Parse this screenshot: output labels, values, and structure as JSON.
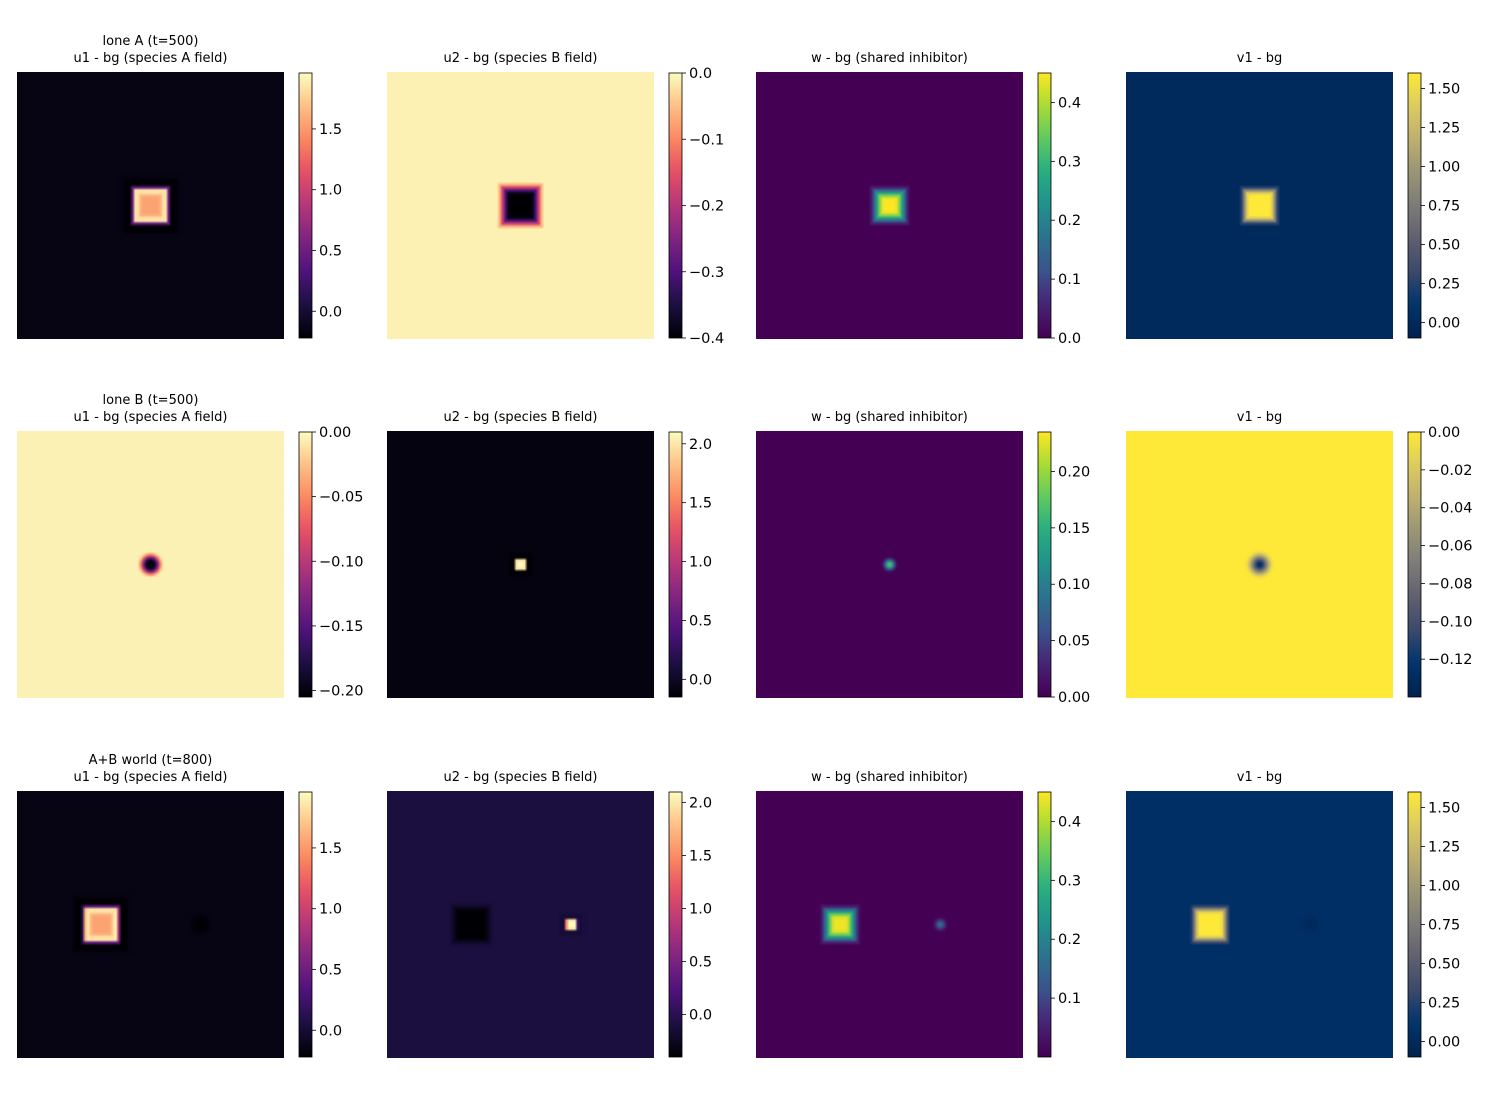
{
  "chart_data": [
    {
      "type": "heatmap",
      "row": 0,
      "col": 0,
      "row_label": "lone A (t=500)",
      "title": "u1 - bg (species A field)",
      "colormap": "magma",
      "vmin": -0.22,
      "vmax": 1.96,
      "colorbar_ticks": [
        "0.0",
        "0.5",
        "1.0",
        "1.5"
      ],
      "colorbar_tick_values": [
        0.0,
        0.5,
        1.0,
        1.5
      ],
      "background_value": -0.15,
      "blobs": [
        {
          "shape": "square",
          "cx": 0.5,
          "cy": 0.5,
          "half_size": 0.065,
          "soft": 0.01,
          "value": 1.55,
          "edge_value": 1.92,
          "halo_value": -0.22,
          "halo_width": 0.05
        }
      ]
    },
    {
      "type": "heatmap",
      "row": 0,
      "col": 1,
      "title": "u2 - bg (species B field)",
      "colormap": "magma",
      "vmin": -0.4,
      "vmax": 0.0,
      "colorbar_ticks": [
        "0.0",
        "−0.1",
        "−0.2",
        "−0.3",
        "−0.4"
      ],
      "colorbar_tick_values": [
        0.0,
        -0.1,
        -0.2,
        -0.3,
        -0.4
      ],
      "background_value": -0.01,
      "blobs": [
        {
          "shape": "square",
          "cx": 0.5,
          "cy": 0.5,
          "half_size": 0.065,
          "soft": 0.025,
          "value": -0.4
        }
      ]
    },
    {
      "type": "heatmap",
      "row": 0,
      "col": 2,
      "title": "w - bg (shared inhibitor)",
      "colormap": "viridis",
      "vmin": 0.0,
      "vmax": 0.45,
      "colorbar_ticks": [
        "0.0",
        "0.1",
        "0.2",
        "0.3",
        "0.4"
      ],
      "colorbar_tick_values": [
        0.0,
        0.1,
        0.2,
        0.3,
        0.4
      ],
      "background_value": 0.0,
      "blobs": [
        {
          "shape": "square",
          "cx": 0.5,
          "cy": 0.5,
          "half_size": 0.05,
          "soft": 0.03,
          "value": 0.45
        }
      ]
    },
    {
      "type": "heatmap",
      "row": 0,
      "col": 3,
      "title": "v1 - bg",
      "colormap": "cividis",
      "vmin": -0.1,
      "vmax": 1.6,
      "colorbar_ticks": [
        "0.00",
        "0.25",
        "0.50",
        "0.75",
        "1.00",
        "1.25",
        "1.50"
      ],
      "colorbar_tick_values": [
        0.0,
        0.25,
        0.5,
        0.75,
        1.0,
        1.25,
        1.5
      ],
      "background_value": 0.0,
      "blobs": [
        {
          "shape": "square",
          "cx": 0.5,
          "cy": 0.5,
          "half_size": 0.058,
          "soft": 0.02,
          "value": 1.6
        }
      ]
    },
    {
      "type": "heatmap",
      "row": 1,
      "col": 0,
      "row_label": "lone B (t=500)",
      "title": "u1 - bg (species A field)",
      "colormap": "magma",
      "vmin": -0.205,
      "vmax": 0.0,
      "colorbar_ticks": [
        "0.00",
        "−0.05",
        "−0.10",
        "−0.15",
        "−0.20"
      ],
      "colorbar_tick_values": [
        0.0,
        -0.05,
        -0.1,
        -0.15,
        -0.2
      ],
      "background_value": -0.005,
      "blobs": [
        {
          "shape": "circle",
          "cx": 0.5,
          "cy": 0.5,
          "radius": 0.03,
          "soft": 0.02,
          "value": -0.205
        }
      ]
    },
    {
      "type": "heatmap",
      "row": 1,
      "col": 1,
      "title": "u2 - bg (species B field)",
      "colormap": "magma",
      "vmin": -0.15,
      "vmax": 2.1,
      "colorbar_ticks": [
        "0.0",
        "0.5",
        "1.0",
        "1.5",
        "2.0"
      ],
      "colorbar_tick_values": [
        0.0,
        0.5,
        1.0,
        1.5,
        2.0
      ],
      "background_value": -0.1,
      "blobs": [
        {
          "shape": "square",
          "cx": 0.5,
          "cy": 0.5,
          "half_size": 0.02,
          "soft": 0.006,
          "value": 2.1,
          "halo_value": -0.15,
          "halo_width": 0.03
        }
      ]
    },
    {
      "type": "heatmap",
      "row": 1,
      "col": 2,
      "title": "w - bg (shared inhibitor)",
      "colormap": "viridis",
      "vmin": 0.0,
      "vmax": 0.235,
      "colorbar_ticks": [
        "0.00",
        "0.05",
        "0.10",
        "0.15",
        "0.20"
      ],
      "colorbar_tick_values": [
        0.0,
        0.05,
        0.1,
        0.15,
        0.2
      ],
      "background_value": 0.0,
      "blobs": [
        {
          "shape": "circle",
          "cx": 0.5,
          "cy": 0.5,
          "radius": 0.012,
          "soft": 0.02,
          "value": 0.235
        }
      ]
    },
    {
      "type": "heatmap",
      "row": 1,
      "col": 3,
      "title": "v1 - bg",
      "colormap": "cividis",
      "vmin": -0.14,
      "vmax": 0.0,
      "colorbar_ticks": [
        "0.00",
        "−0.02",
        "−0.04",
        "−0.06",
        "−0.08",
        "−0.10",
        "−0.12"
      ],
      "colorbar_tick_values": [
        0.0,
        -0.02,
        -0.04,
        -0.06,
        -0.08,
        -0.1,
        -0.12
      ],
      "background_value": 0.0,
      "blobs": [
        {
          "shape": "circle",
          "cx": 0.5,
          "cy": 0.5,
          "radius": 0.025,
          "soft": 0.03,
          "value": -0.14
        }
      ]
    },
    {
      "type": "heatmap",
      "row": 2,
      "col": 0,
      "row_label": "A+B world (t=800)",
      "title": "u1 - bg (species A field)",
      "colormap": "magma",
      "vmin": -0.22,
      "vmax": 1.96,
      "colorbar_ticks": [
        "0.0",
        "0.5",
        "1.0",
        "1.5"
      ],
      "colorbar_tick_values": [
        0.0,
        0.5,
        1.0,
        1.5
      ],
      "background_value": -0.15,
      "blobs": [
        {
          "shape": "square",
          "cx": 0.315,
          "cy": 0.5,
          "half_size": 0.065,
          "soft": 0.01,
          "value": 1.55,
          "edge_value": 1.92,
          "halo_value": -0.22,
          "halo_width": 0.05
        },
        {
          "shape": "circle",
          "cx": 0.69,
          "cy": 0.5,
          "radius": 0.03,
          "soft": 0.02,
          "value": -0.22
        }
      ]
    },
    {
      "type": "heatmap",
      "row": 2,
      "col": 1,
      "title": "u2 - bg (species B field)",
      "colormap": "magma",
      "vmin": -0.4,
      "vmax": 2.1,
      "colorbar_ticks": [
        "0.0",
        "0.5",
        "1.0",
        "1.5",
        "2.0"
      ],
      "colorbar_tick_values": [
        0.0,
        0.5,
        1.0,
        1.5,
        2.0
      ],
      "background_value": -0.1,
      "blobs": [
        {
          "shape": "square",
          "cx": 0.315,
          "cy": 0.5,
          "half_size": 0.065,
          "soft": 0.02,
          "value": -0.4
        },
        {
          "shape": "square",
          "cx": 0.69,
          "cy": 0.5,
          "half_size": 0.02,
          "soft": 0.006,
          "value": 2.1,
          "halo_value": -0.15,
          "halo_width": 0.03
        }
      ]
    },
    {
      "type": "heatmap",
      "row": 2,
      "col": 2,
      "title": "w - bg (shared inhibitor)",
      "colormap": "viridis",
      "vmin": 0.0,
      "vmax": 0.45,
      "colorbar_ticks": [
        "0.1",
        "0.2",
        "0.3",
        "0.4"
      ],
      "colorbar_tick_values": [
        0.1,
        0.2,
        0.3,
        0.4
      ],
      "background_value": 0.0,
      "blobs": [
        {
          "shape": "square",
          "cx": 0.315,
          "cy": 0.5,
          "half_size": 0.05,
          "soft": 0.03,
          "value": 0.44
        },
        {
          "shape": "circle",
          "cx": 0.69,
          "cy": 0.5,
          "radius": 0.012,
          "soft": 0.02,
          "value": 0.22
        }
      ]
    },
    {
      "type": "heatmap",
      "row": 2,
      "col": 3,
      "title": "v1 - bg",
      "colormap": "cividis",
      "vmin": -0.1,
      "vmax": 1.6,
      "colorbar_ticks": [
        "0.00",
        "0.25",
        "0.50",
        "0.75",
        "1.00",
        "1.25",
        "1.50"
      ],
      "colorbar_tick_values": [
        0.0,
        0.25,
        0.5,
        0.75,
        1.0,
        1.25,
        1.5
      ],
      "background_value": 0.06,
      "blobs": [
        {
          "shape": "square",
          "cx": 0.315,
          "cy": 0.5,
          "half_size": 0.058,
          "soft": 0.02,
          "value": 1.6
        },
        {
          "shape": "circle",
          "cx": 0.69,
          "cy": 0.5,
          "radius": 0.025,
          "soft": 0.03,
          "value": -0.02
        }
      ]
    }
  ]
}
